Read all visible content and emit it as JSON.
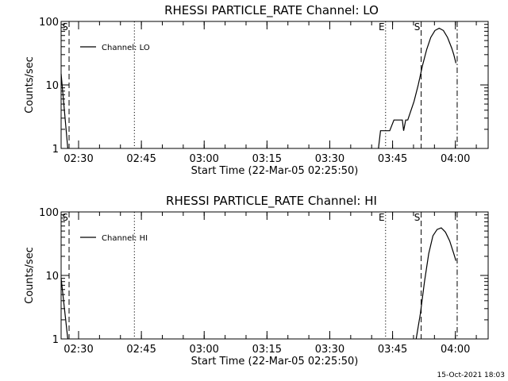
{
  "footer_timestamp": "15-Oct-2021 18:03",
  "chart_data": [
    {
      "type": "line",
      "title": "RHESSI PARTICLE_RATE Channel: LO",
      "xlabel": "Start Time (22-Mar-05 02:25:50)",
      "ylabel": "Counts/sec",
      "y_scale": "log",
      "ylim": [
        1,
        100
      ],
      "y_ticks": [
        "1",
        "10",
        "100"
      ],
      "x_ticks": [
        "02:30",
        "02:45",
        "03:00",
        "03:15",
        "03:30",
        "03:45",
        "04:00"
      ],
      "x_tick_minutes": [
        4.17,
        19.17,
        34.17,
        49.17,
        64.17,
        79.17,
        94.17
      ],
      "xlim_minutes": [
        0,
        102
      ],
      "legend": "Channel: LO",
      "legend_placement": "top-left",
      "markers": [
        {
          "label": "S",
          "minute": 1.9,
          "style": "dashed"
        },
        {
          "label": "",
          "minute": 17.5,
          "style": "dotted"
        },
        {
          "label": "E",
          "minute": 77.5,
          "style": "dotted"
        },
        {
          "label": "S",
          "minute": 86.0,
          "style": "dashed"
        },
        {
          "label": "",
          "minute": 94.6,
          "style": "dashdot"
        }
      ],
      "series": [
        {
          "x": [
            0,
            1.6
          ],
          "y": [
            15,
            1
          ]
        },
        {
          "x": [
            75.8,
            76.3,
            77.5,
            78.5,
            79.5,
            81.5,
            81.8,
            82.3,
            82.8,
            84.3,
            85.3,
            86.3,
            87.3,
            88.3,
            89.3,
            90.3,
            91.3,
            92.3,
            93.3,
            93.8,
            94.3
          ],
          "y": [
            1,
            1.9,
            1.9,
            1.9,
            2.8,
            2.8,
            1.9,
            2.8,
            2.8,
            5.5,
            10,
            20,
            36,
            56,
            72,
            78,
            72,
            56,
            38,
            30,
            22
          ]
        }
      ]
    },
    {
      "type": "line",
      "title": "RHESSI PARTICLE_RATE Channel: HI",
      "xlabel": "Start Time (22-Mar-05 02:25:50)",
      "ylabel": "Counts/sec",
      "y_scale": "log",
      "ylim": [
        1,
        100
      ],
      "y_ticks": [
        "1",
        "10",
        "100"
      ],
      "x_ticks": [
        "02:30",
        "02:45",
        "03:00",
        "03:15",
        "03:30",
        "03:45",
        "04:00"
      ],
      "x_tick_minutes": [
        4.17,
        19.17,
        34.17,
        49.17,
        64.17,
        79.17,
        94.17
      ],
      "xlim_minutes": [
        0,
        102
      ],
      "legend": "Channel: HI",
      "legend_placement": "top-left",
      "markers": [
        {
          "label": "S",
          "minute": 1.9,
          "style": "dashed"
        },
        {
          "label": "",
          "minute": 17.5,
          "style": "dotted"
        },
        {
          "label": "E",
          "minute": 77.5,
          "style": "dotted"
        },
        {
          "label": "S",
          "minute": 86.0,
          "style": "dashed"
        },
        {
          "label": "",
          "minute": 94.6,
          "style": "dashdot"
        }
      ],
      "series": [
        {
          "x": [
            0,
            1.6
          ],
          "y": [
            9,
            1
          ]
        },
        {
          "x": [
            84.8,
            85.8,
            86.8,
            87.8,
            88.8,
            89.8,
            90.8,
            91.3,
            91.8,
            92.8,
            93.8,
            94.3
          ],
          "y": [
            1,
            2.5,
            8,
            22,
            42,
            53,
            56,
            52,
            48,
            35,
            22,
            17
          ]
        }
      ]
    }
  ]
}
